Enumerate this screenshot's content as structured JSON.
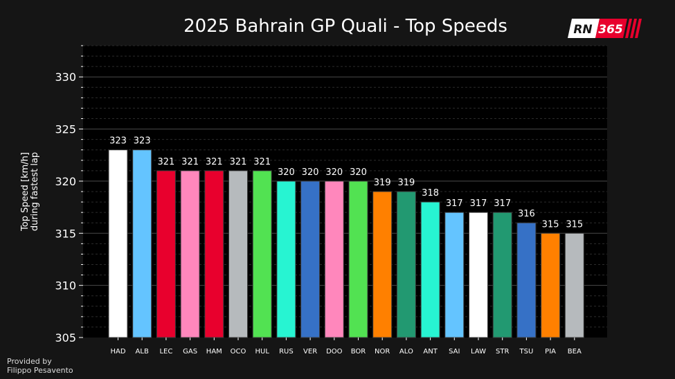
{
  "chart_data": {
    "type": "bar",
    "title": "2025 Bahrain GP Quali - Top Speeds",
    "ylabel_lines": [
      "Top Speed [km/h]",
      "during fastest lap"
    ],
    "xlabel": "",
    "ylim": [
      305,
      333
    ],
    "yticks": [
      305,
      310,
      315,
      320,
      325,
      330
    ],
    "grid": true,
    "categories": [
      "HAD",
      "ALB",
      "LEC",
      "GAS",
      "HAM",
      "OCO",
      "HUL",
      "RUS",
      "VER",
      "DOO",
      "BOR",
      "NOR",
      "ALO",
      "ANT",
      "SAI",
      "LAW",
      "STR",
      "TSU",
      "PIA",
      "BEA"
    ],
    "values": [
      323,
      323,
      321,
      321,
      321,
      321,
      321,
      320,
      320,
      320,
      320,
      319,
      319,
      318,
      317,
      317,
      317,
      316,
      315,
      315
    ],
    "colors": [
      "#ffffff",
      "#64c4ff",
      "#e8002d",
      "#ff87bc",
      "#e8002d",
      "#b6babd",
      "#52e252",
      "#27f4d2",
      "#3671c6",
      "#ff87bc",
      "#52e252",
      "#ff8000",
      "#229971",
      "#27f4d2",
      "#64c4ff",
      "#ffffff",
      "#229971",
      "#3671c6",
      "#ff8000",
      "#b6babd"
    ]
  },
  "credit": {
    "line1": "Provided by",
    "line2": "Filippo Pesavento"
  },
  "logo": {
    "left_text": "RN",
    "right_text": "365",
    "accent": "#e8002d"
  }
}
